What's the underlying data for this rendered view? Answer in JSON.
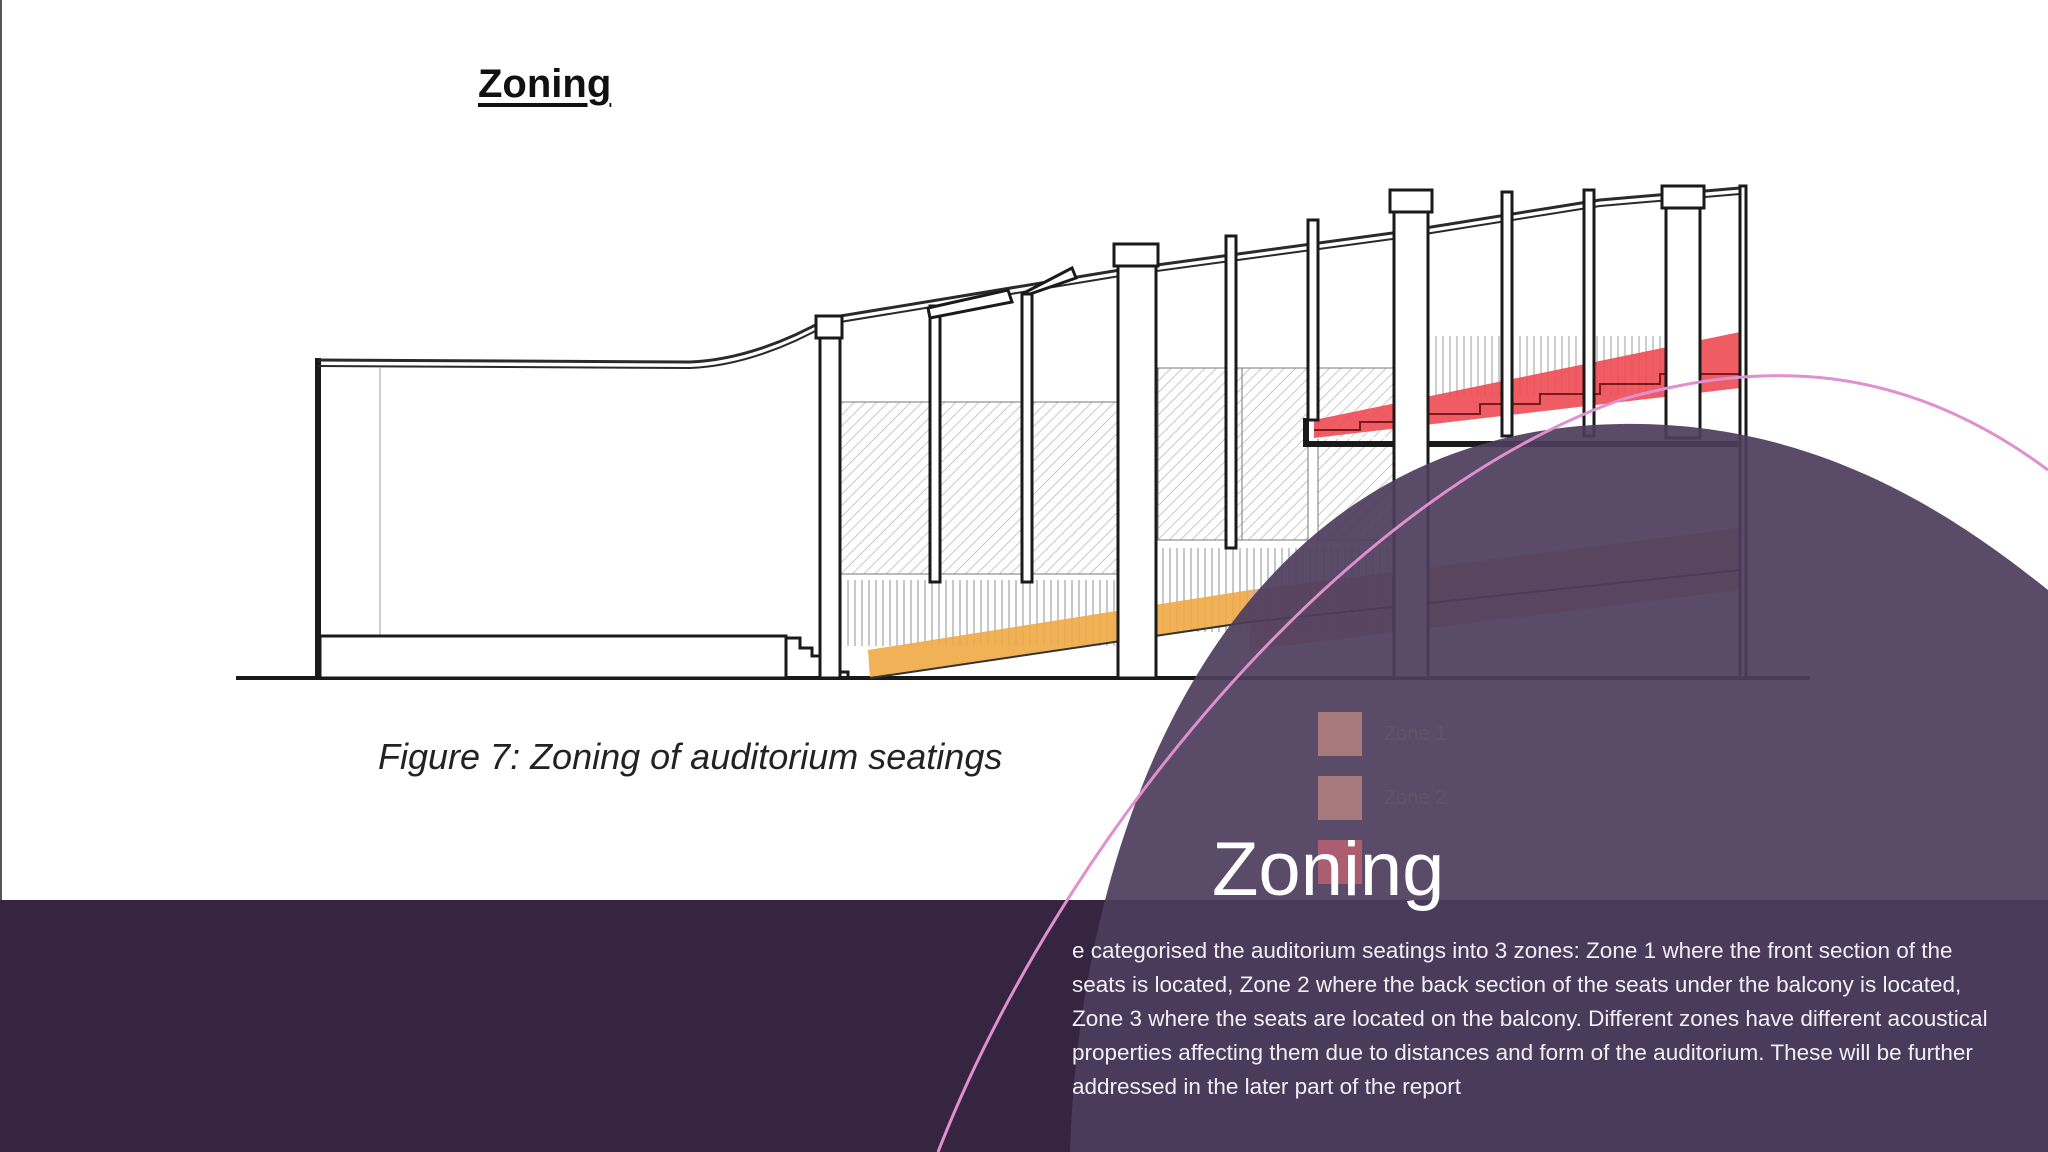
{
  "drawing": {
    "title": "Zoning",
    "caption": "Figure 7: Zoning of auditorium seatings",
    "legend": [
      {
        "label": "Zone 1",
        "color": "#e9a08a"
      },
      {
        "label": "Zone 2",
        "color": "#e4a08f"
      },
      {
        "label": "",
        "color": "#ef6f78"
      }
    ],
    "zone_colors": {
      "zone1": "#f0a844",
      "zone2": "#e8996f",
      "zone3": "#ee4a52"
    }
  },
  "slide": {
    "title": "Zoning",
    "body": "e categorised the auditorium seatings into 3 zones: Zone 1 where the front section of the seats is located, Zone 2 where the back section of the seats under the balcony is located, Zone 3 where the seats are located on the balcony. Different zones have different acoustical properties affecting them due to distances and form of the auditorium. These will be further addressed in the later part of the report",
    "colors": {
      "band": "#352541",
      "shape": "#4e3d5e",
      "accent_curve": "#e08fd0"
    }
  }
}
